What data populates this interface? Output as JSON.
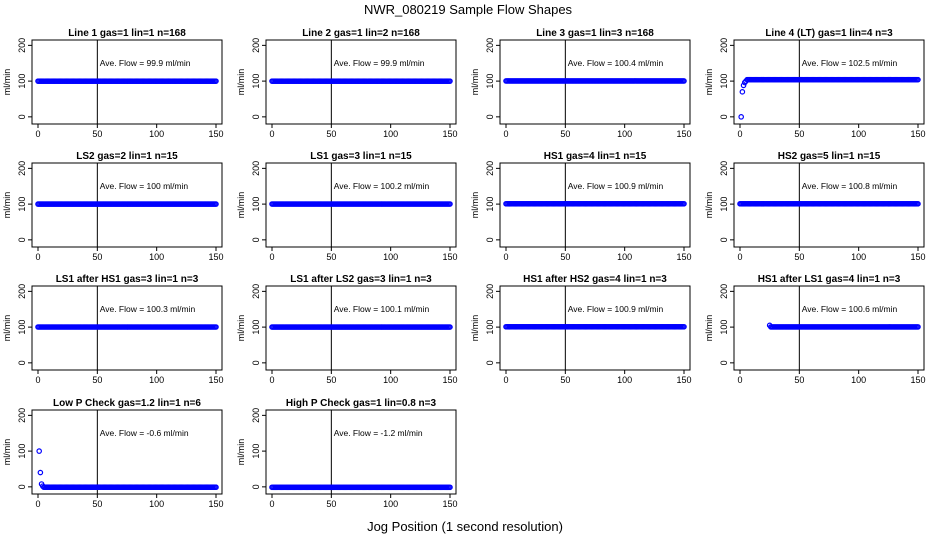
{
  "title": "NWR_080219  Sample Flow Shapes",
  "xlabel": "Jog Position (1 second resolution)",
  "chart_data": {
    "type": "scatter",
    "title": "NWR_080219  Sample Flow Shapes",
    "xlabel": "Jog Position (1 second resolution)",
    "ylabel": "ml/min",
    "xlim": [
      0,
      150
    ],
    "ylim": [
      -20,
      215
    ],
    "xticks": [
      0,
      50,
      100,
      150
    ],
    "yticks": [
      0,
      100,
      200
    ],
    "annotation_prefix": "Ave. Flow =",
    "unit": "ml/min",
    "vline_x": 50,
    "point_color": "#0000ff",
    "panels": [
      {
        "title": "Line 1 gas=1 lin=1 n=168",
        "ave_flow": "99.9",
        "flat_value": 99.9,
        "start_points": []
      },
      {
        "title": "Line 2 gas=1 lin=2 n=168",
        "ave_flow": "99.9",
        "flat_value": 99.9,
        "start_points": []
      },
      {
        "title": "Line 3 gas=1 lin=3 n=168",
        "ave_flow": "100.4",
        "flat_value": 100.4,
        "start_points": []
      },
      {
        "title": "Line 4 (LT) gas=1 lin=4 n=3",
        "ave_flow": "102.5",
        "flat_value": 104,
        "start_points": [
          [
            1,
            0
          ],
          [
            2,
            70
          ],
          [
            3,
            88
          ],
          [
            4,
            96
          ],
          [
            5,
            100
          ]
        ]
      },
      {
        "title": "LS2 gas=2 lin=1 n=15",
        "ave_flow": "100",
        "flat_value": 100,
        "start_points": []
      },
      {
        "title": "LS1 gas=3 lin=1 n=15",
        "ave_flow": "100.2",
        "flat_value": 100.2,
        "start_points": []
      },
      {
        "title": "HS1 gas=4 lin=1 n=15",
        "ave_flow": "100.9",
        "flat_value": 100.9,
        "start_points": []
      },
      {
        "title": "HS2 gas=5 lin=1 n=15",
        "ave_flow": "100.8",
        "flat_value": 100.8,
        "start_points": []
      },
      {
        "title": "LS1 after HS1 gas=3 lin=1 n=3",
        "ave_flow": "100.3",
        "flat_value": 100.3,
        "start_points": []
      },
      {
        "title": "LS1 after LS2 gas=3 lin=1 n=3",
        "ave_flow": "100.1",
        "flat_value": 100.1,
        "start_points": []
      },
      {
        "title": "HS1 after HS2 gas=4 lin=1 n=3",
        "ave_flow": "100.9",
        "flat_value": 100.9,
        "start_points": []
      },
      {
        "title": "HS1 after LS1 gas=4 lin=1 n=3",
        "ave_flow": "100.6",
        "flat_value": 100.6,
        "start_points": [
          [
            25,
            105
          ]
        ]
      },
      {
        "title": "Low P Check gas=1.2 lin=1 n=6",
        "ave_flow": "-0.6",
        "flat_value": -1,
        "start_points": [
          [
            1,
            100
          ],
          [
            2,
            40
          ],
          [
            3,
            8
          ],
          [
            4,
            2
          ]
        ]
      },
      {
        "title": "High P Check gas=1 lin=0.8 n=3",
        "ave_flow": "-1.2",
        "flat_value": -1.2,
        "start_points": []
      }
    ]
  }
}
